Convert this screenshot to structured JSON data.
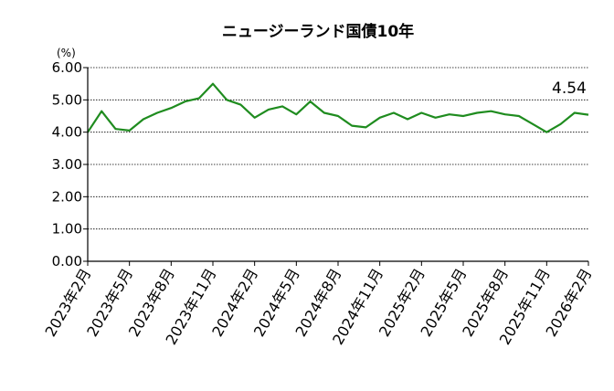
{
  "chart_data": {
    "type": "line",
    "title": "ニュージーランド国債10年",
    "unit_label": "(%)",
    "ylim": [
      0,
      6
    ],
    "y_ticks": [
      "6.00",
      "5.00",
      "4.00",
      "3.00",
      "2.00",
      "1.00",
      "0.00"
    ],
    "x_tick_labels": [
      "2023年2月",
      "2023年5月",
      "2023年8月",
      "2023年11月",
      "2024年2月",
      "2024年5月",
      "2024年8月",
      "2024年11月",
      "2025年2月",
      "2025年5月",
      "2025年8月",
      "2025年11月",
      "2026年2月"
    ],
    "grid": true,
    "last_value_label": "4.54",
    "line_color": "#1f8c1f",
    "series": [
      {
        "x": [
          "2023-02",
          "2023-03",
          "2023-04",
          "2023-05",
          "2023-06",
          "2023-07",
          "2023-08",
          "2023-09",
          "2023-10",
          "2023-11",
          "2023-12",
          "2024-01",
          "2024-02",
          "2024-03",
          "2024-04",
          "2024-05",
          "2024-06",
          "2024-07",
          "2024-08",
          "2024-09",
          "2024-10",
          "2024-11",
          "2024-12",
          "2025-01",
          "2025-02",
          "2025-03",
          "2025-04",
          "2025-05",
          "2025-06",
          "2025-07",
          "2025-08",
          "2025-09",
          "2025-10",
          "2025-11",
          "2025-12",
          "2026-01",
          "2026-02"
        ],
        "values": [
          4.0,
          4.65,
          4.1,
          4.05,
          4.4,
          4.6,
          4.75,
          4.95,
          5.05,
          5.5,
          5.0,
          4.85,
          4.45,
          4.7,
          4.8,
          4.55,
          4.95,
          4.6,
          4.5,
          4.2,
          4.15,
          4.45,
          4.6,
          4.4,
          4.6,
          4.45,
          4.55,
          4.5,
          4.6,
          4.65,
          4.55,
          4.5,
          4.25,
          4.0,
          4.25,
          4.6,
          4.54
        ]
      }
    ]
  }
}
